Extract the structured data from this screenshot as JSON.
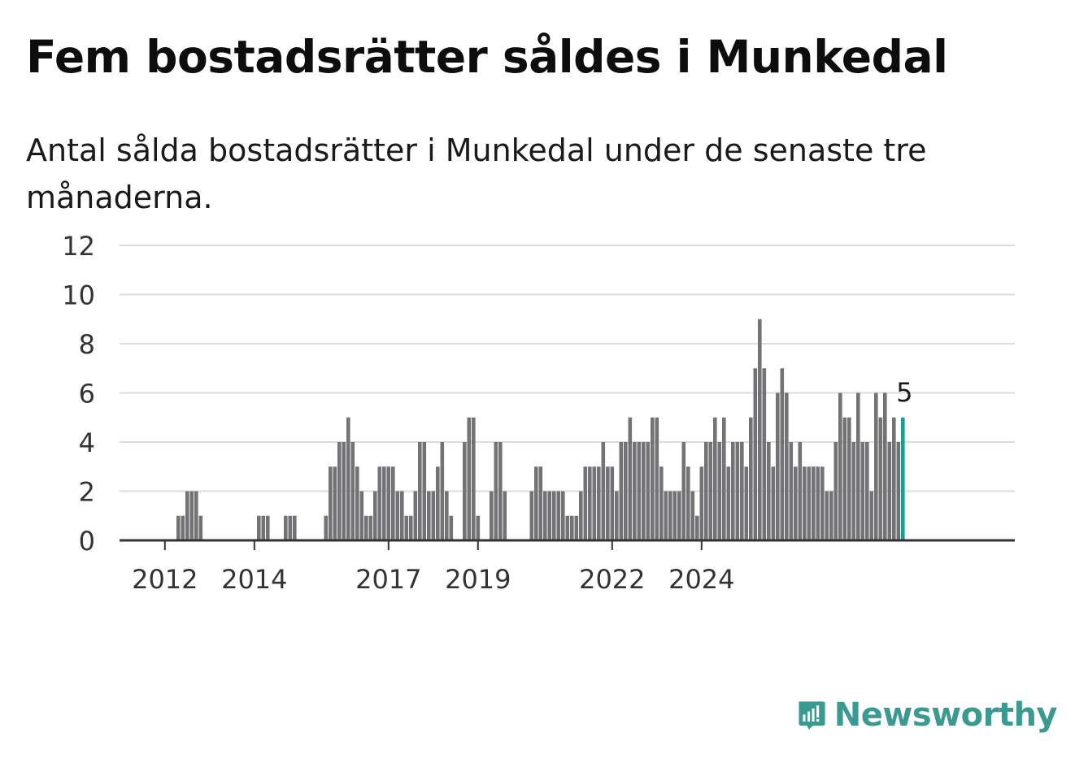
{
  "title": "Fem bostadsrätter såldes i Munkedal",
  "subtitle": "Antal sålda bostadsrätter i Munkedal under de senaste tre månaderna.",
  "brand": {
    "name": "Newsworthy",
    "icon": "newsworthy-logo-icon",
    "color": "#3a9a92"
  },
  "colors": {
    "bar": "#737275",
    "highlight": "#1e9e93",
    "grid": "#dcdcdc",
    "axis": "#333333",
    "label": "#333333"
  },
  "chart_data": {
    "type": "bar",
    "title": "Fem bostadsrätter såldes i Munkedal",
    "subtitle": "Antal sålda bostadsrätter i Munkedal under de senaste tre månaderna.",
    "ylim": [
      0,
      12
    ],
    "yticks": [
      0,
      2,
      4,
      6,
      8,
      10,
      12
    ],
    "xticks": [
      {
        "label": "2012",
        "index": 7
      },
      {
        "label": "2014",
        "index": 27
      },
      {
        "label": "2017",
        "index": 57
      },
      {
        "label": "2019",
        "index": 77
      },
      {
        "label": "2022",
        "index": 107
      },
      {
        "label": "2024",
        "index": 127
      }
    ],
    "grid": true,
    "highlight_label": "5",
    "values": [
      0,
      0,
      0,
      0,
      0,
      0,
      0,
      0,
      0,
      0,
      1,
      1,
      2,
      2,
      2,
      1,
      0,
      0,
      0,
      0,
      0,
      0,
      0,
      0,
      0,
      0,
      0,
      0,
      1,
      1,
      1,
      0,
      0,
      0,
      1,
      1,
      1,
      0,
      0,
      0,
      0,
      0,
      0,
      1,
      3,
      3,
      4,
      4,
      5,
      4,
      3,
      2,
      1,
      1,
      2,
      3,
      3,
      3,
      3,
      2,
      2,
      1,
      1,
      2,
      4,
      4,
      2,
      2,
      3,
      4,
      2,
      1,
      0,
      0,
      4,
      5,
      5,
      1,
      0,
      0,
      2,
      4,
      4,
      2,
      0,
      0,
      0,
      0,
      0,
      2,
      3,
      3,
      2,
      2,
      2,
      2,
      2,
      1,
      1,
      1,
      2,
      3,
      3,
      3,
      3,
      4,
      3,
      3,
      2,
      4,
      4,
      5,
      4,
      4,
      4,
      4,
      5,
      5,
      3,
      2,
      2,
      2,
      2,
      4,
      3,
      2,
      1,
      3,
      4,
      4,
      5,
      4,
      5,
      3,
      4,
      4,
      4,
      3,
      5,
      7,
      9,
      7,
      4,
      3,
      6,
      7,
      6,
      4,
      3,
      4,
      3,
      3,
      3,
      3,
      3,
      2,
      2,
      4,
      6,
      5,
      5,
      4,
      6,
      4,
      4,
      2,
      6,
      5,
      6,
      4,
      5,
      4,
      5
    ]
  }
}
